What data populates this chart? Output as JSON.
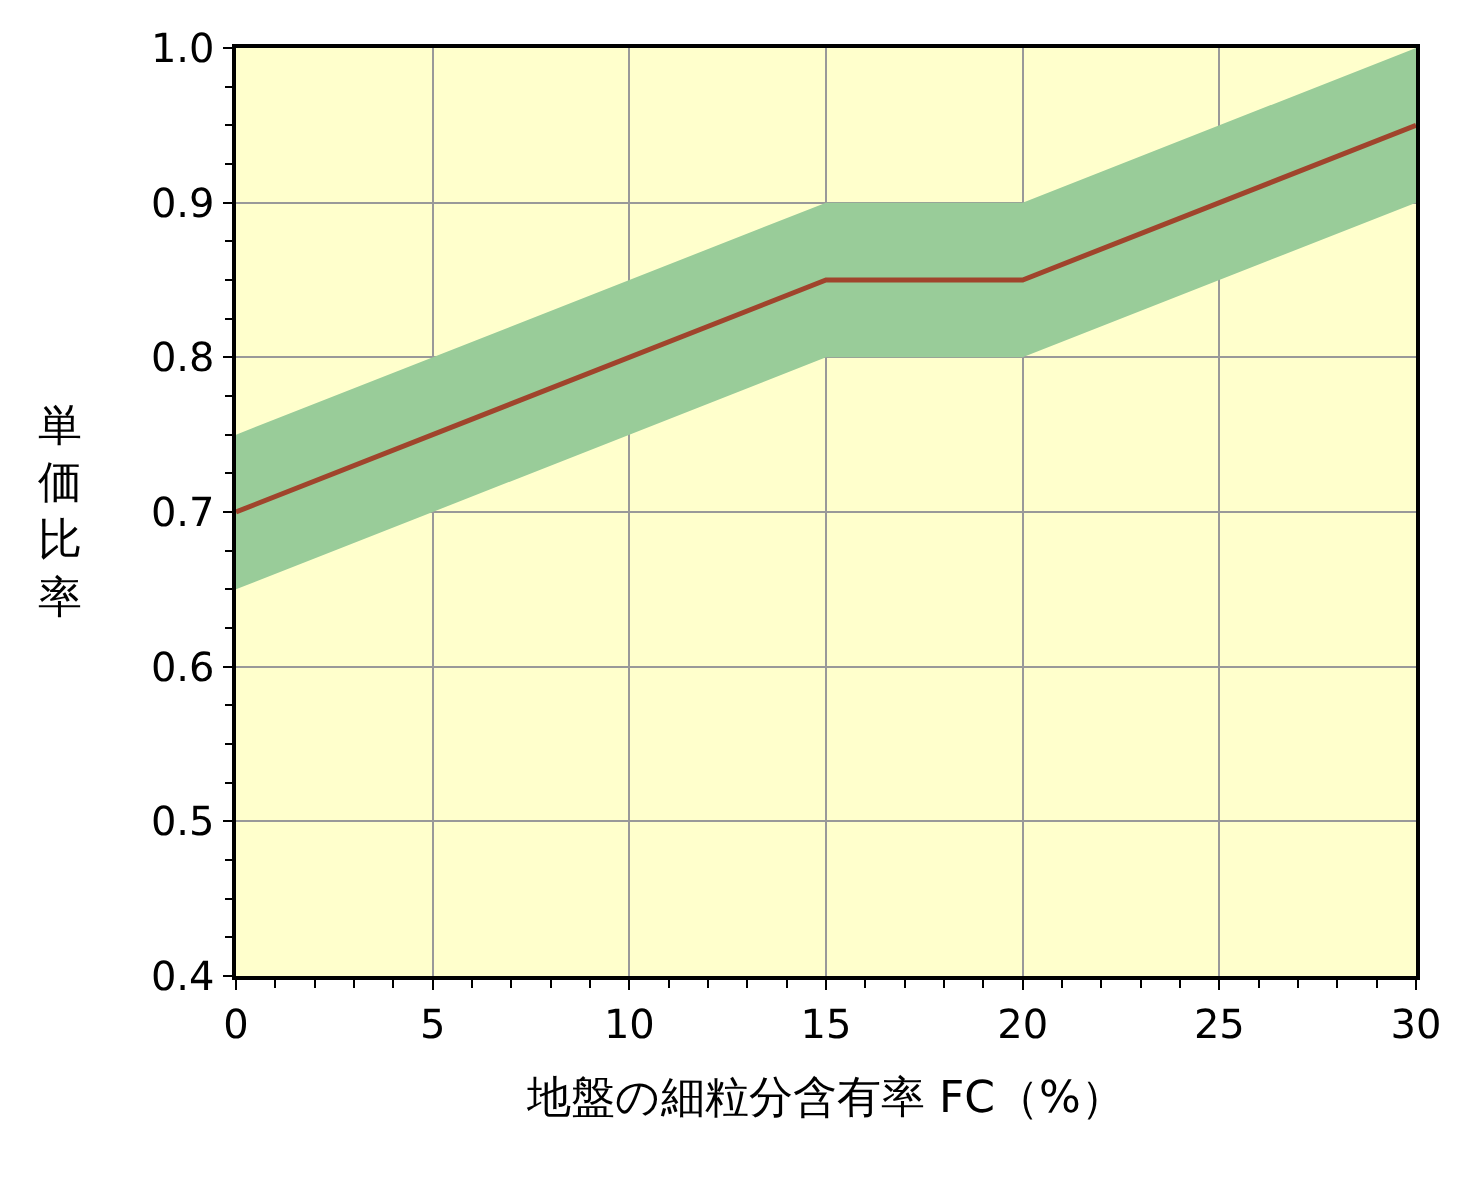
{
  "chart_data": {
    "type": "line",
    "xlabel": "地盤の細粒分含有率 FC（%）",
    "ylabel": "単価比率",
    "xlim": [
      0,
      30
    ],
    "xticks": [
      0,
      5,
      10,
      15,
      20,
      25,
      30
    ],
    "ylim": [
      0.4,
      1.0
    ],
    "yticks": [
      {
        "value": 0.4,
        "label": "0.4"
      },
      {
        "value": 0.5,
        "label": "0.5"
      },
      {
        "value": 0.6,
        "label": "0.6"
      },
      {
        "value": 0.7,
        "label": "0.7"
      },
      {
        "value": 0.8,
        "label": "0.8"
      },
      {
        "value": 0.9,
        "label": "0.9"
      },
      {
        "value": 1.0,
        "label": "1.0"
      }
    ],
    "grid": true,
    "marker": "none",
    "line_style": "solid",
    "series": [
      {
        "color": "#a0442c",
        "x": [
          0,
          15,
          20,
          30
        ],
        "values": [
          0.7,
          0.85,
          0.85,
          0.95
        ],
        "lower": [
          0.65,
          0.8,
          0.8,
          0.9
        ],
        "upper": [
          0.75,
          0.9,
          0.9,
          1.0
        ]
      }
    ]
  }
}
